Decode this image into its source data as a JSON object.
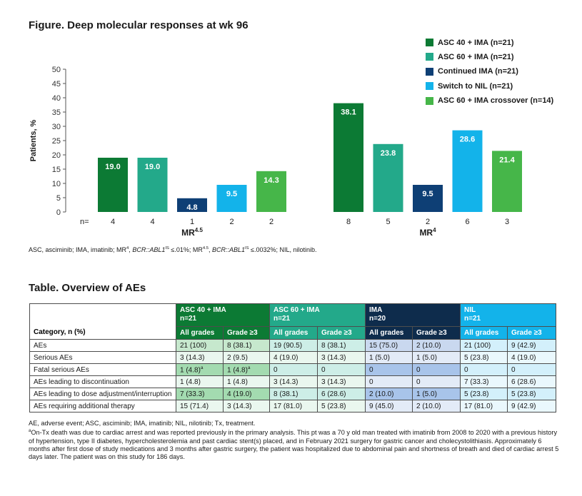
{
  "figure": {
    "title": "Figure. Deep molecular responses at wk 96",
    "footnote_html": "ASC, asciminib; IMA, imatinib; MR<sup>4</sup>, <i>BCR::ABL1</i><sup>IS</sup> ≤.01%; MR<sup>4.5</sup>, <i>BCR::ABL1</i><sup>IS</sup> ≤.0032%; NIL, nilotinib."
  },
  "chart_data": {
    "type": "bar",
    "ylabel": "Patients, %",
    "ylim": [
      0,
      50
    ],
    "yticks": [
      0,
      5,
      10,
      15,
      20,
      25,
      30,
      35,
      40,
      45,
      50
    ],
    "n_prefix": "n=",
    "groups": [
      {
        "label": "MR",
        "label_sup": "4.5",
        "bars": [
          {
            "series": "ASC 40 + IMA (n=21)",
            "value": 19.0,
            "label": "19.0",
            "n": "4"
          },
          {
            "series": "ASC 60 + IMA (n=21)",
            "value": 19.0,
            "label": "19.0",
            "n": "4"
          },
          {
            "series": "Continued IMA (n=21)",
            "value": 4.8,
            "label": "4.8",
            "n": "1"
          },
          {
            "series": "Switch to NIL (n=21)",
            "value": 9.5,
            "label": "9.5",
            "n": "2"
          },
          {
            "series": "ASC 60 + IMA crossover (n=14)",
            "value": 14.3,
            "label": "14.3",
            "n": "2"
          }
        ]
      },
      {
        "label": "MR",
        "label_sup": "4",
        "bars": [
          {
            "series": "ASC 40 + IMA (n=21)",
            "value": 38.1,
            "label": "38.1",
            "n": "8"
          },
          {
            "series": "ASC 60 + IMA (n=21)",
            "value": 23.8,
            "label": "23.8",
            "n": "5"
          },
          {
            "series": "Continued IMA (n=21)",
            "value": 9.5,
            "label": "9.5",
            "n": "2"
          },
          {
            "series": "Switch to NIL (n=21)",
            "value": 28.6,
            "label": "28.6",
            "n": "6"
          },
          {
            "series": "ASC 60 + IMA crossover (n=14)",
            "value": 21.4,
            "label": "21.4",
            "n": "3"
          }
        ]
      }
    ],
    "series": [
      {
        "name": "ASC 40 + IMA (n=21)",
        "color": "#0c7a34"
      },
      {
        "name": "ASC 60 + IMA (n=21)",
        "color": "#23a98a"
      },
      {
        "name": "Continued IMA (n=21)",
        "color": "#0e3f75"
      },
      {
        "name": "Switch to NIL (n=21)",
        "color": "#13b3ea"
      },
      {
        "name": "ASC 60 + IMA crossover (n=14)",
        "color": "#46b649"
      }
    ],
    "legend_position": "top-right",
    "grid": false
  },
  "table": {
    "title": "Table. Overview of AEs",
    "category_header": "Category, n (%)",
    "groups": [
      {
        "name": "ASC 40 + IMA",
        "n": "n=21"
      },
      {
        "name": "ASC 60 + IMA",
        "n": "n=21"
      },
      {
        "name": "IMA",
        "n": "n=20"
      },
      {
        "name": "NIL",
        "n": "n=21"
      }
    ],
    "subheaders": [
      "All grades",
      "Grade ≥3",
      "All grades",
      "Grade ≥3",
      "All grades",
      "Grade ≥3",
      "All grades",
      "Grade ≥3"
    ],
    "rows": [
      {
        "category": "AEs",
        "values": [
          "21 (100)",
          "8 (38.1)",
          "19 (90.5)",
          "8 (38.1)",
          "15 (75.0)",
          "2 (10.0)",
          "21 (100)",
          "9 (42.9)"
        ]
      },
      {
        "category": "Serious AEs",
        "values": [
          "3 (14.3)",
          "2 (9.5)",
          "4 (19.0)",
          "3 (14.3)",
          "1 (5.0)",
          "1 (5.0)",
          "5 (23.8)",
          "4 (19.0)"
        ]
      },
      {
        "category": "Fatal serious AEs",
        "values": [
          "1 (4.8)",
          "1 (4.8)",
          "0",
          "0",
          "0",
          "0",
          "0",
          "0"
        ],
        "sup": [
          "a",
          "a",
          "",
          "",
          "",
          "",
          "",
          ""
        ]
      },
      {
        "category": "AEs leading to discontinuation",
        "values": [
          "1 (4.8)",
          "1 (4.8)",
          "3 (14.3)",
          "3 (14.3)",
          "0",
          "0",
          "7 (33.3)",
          "6 (28.6)"
        ]
      },
      {
        "category": "AEs leading to dose adjustment/interruption",
        "values": [
          "7 (33.3)",
          "4 (19.0)",
          "8 (38.1)",
          "6 (28.6)",
          "2 (10.0)",
          "1 (5.0)",
          "5 (23.8)",
          "5 (23.8)"
        ]
      },
      {
        "category": "AEs requiring additional therapy",
        "values": [
          "15 (71.4)",
          "3 (14.3)",
          "17 (81.0)",
          "5 (23.8)",
          "9 (45.0)",
          "2 (10.0)",
          "17 (81.0)",
          "9 (42.9)"
        ]
      }
    ],
    "footnote_abbrev": "AE, adverse event; ASC, asciminib; IMA, imatinib; NIL, nilotinib; Tx, treatment.",
    "footnote_a_mark": "a",
    "footnote_a": "On-Tx death was due to cardiac arrest and was reported previously in the primary analysis. This pt was a 70 y old man treated with imatinib from 2008 to 2020 with a previous history of hypertension, type II diabetes, hypercholesterolemia and past cardiac stent(s) placed, and in February 2021 surgery for gastric cancer and cholecystolithiasis. Approximately 6 months after first dose of study medications and 3 months after gastric surgery, the patient was hospitalized due to abdominal pain and shortness of breath and died of cardiac arrest 5 days later. The patient was on this study for 186 days."
  }
}
